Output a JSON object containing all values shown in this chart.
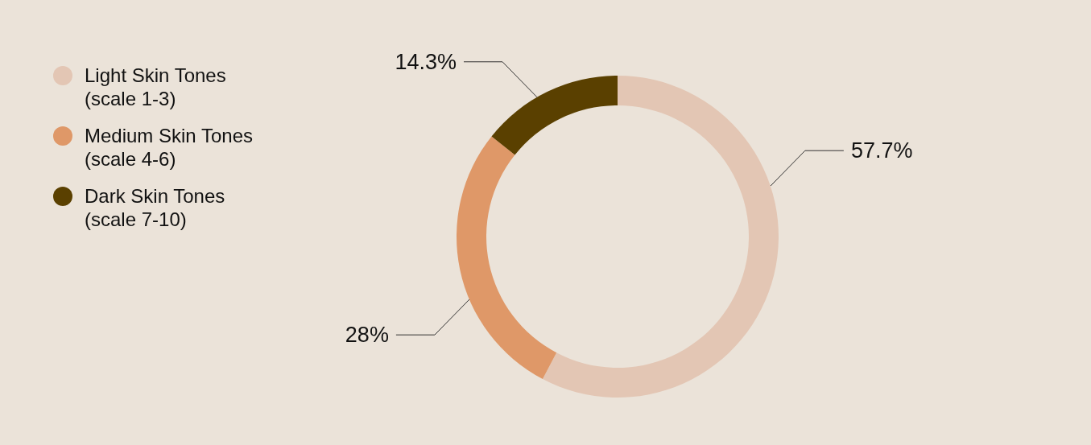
{
  "chart_data": {
    "type": "donut",
    "categories": [
      "Light Skin Tones (scale 1-3)",
      "Medium Skin Tones (scale 4-6)",
      "Dark Skin Tones (scale 7-10)"
    ],
    "values": [
      57.7,
      28,
      14.3
    ],
    "colors": [
      "#e3c6b4",
      "#df9868",
      "#5a4000"
    ],
    "value_labels": [
      "57.7%",
      "28%",
      "14.3%"
    ],
    "legend": "top left"
  }
}
